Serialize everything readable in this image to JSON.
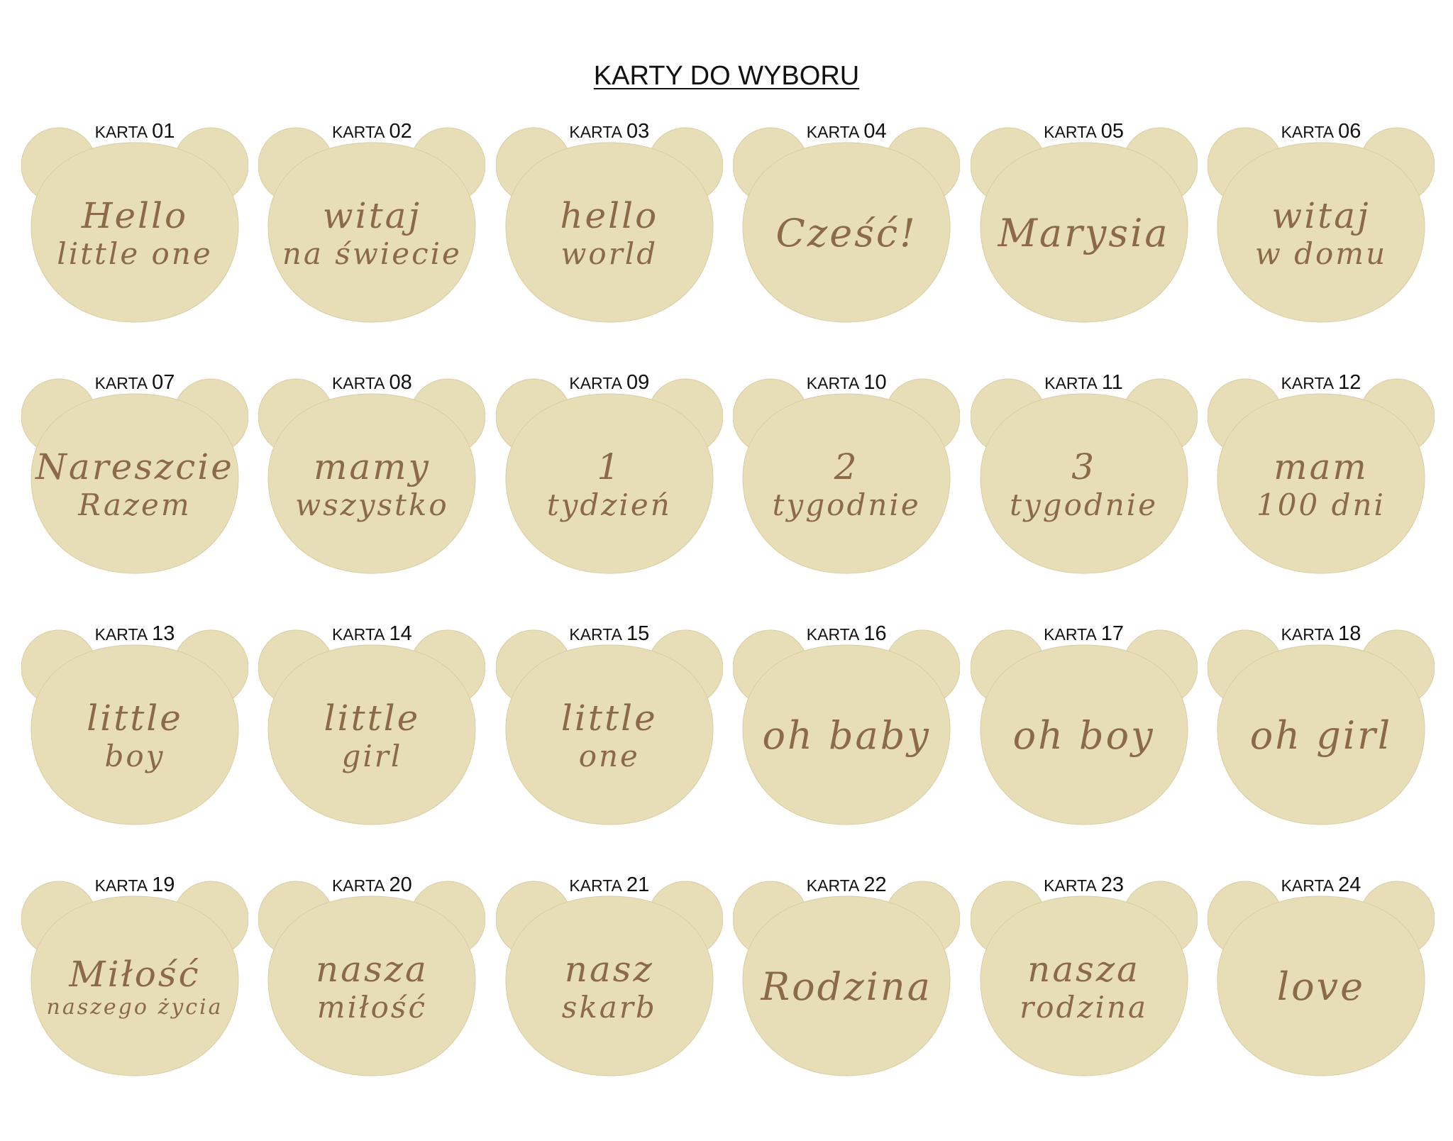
{
  "title": "KARTY DO WYBORU",
  "label_prefix": "KARTA",
  "colors": {
    "wood": "#e7ddb7",
    "wood_edge": "#d9cda2",
    "engraving": "#8b6a48",
    "background": "#ffffff"
  },
  "cards": [
    {
      "number": "01",
      "lines": [
        "Hello",
        "little one"
      ]
    },
    {
      "number": "02",
      "lines": [
        "witaj",
        "na świecie"
      ]
    },
    {
      "number": "03",
      "lines": [
        "hello",
        "world"
      ]
    },
    {
      "number": "04",
      "lines": [
        "Cześć!"
      ]
    },
    {
      "number": "05",
      "lines": [
        "Marysia"
      ]
    },
    {
      "number": "06",
      "lines": [
        "witaj",
        "w domu"
      ]
    },
    {
      "number": "07",
      "lines": [
        "Nareszcie",
        "Razem"
      ]
    },
    {
      "number": "08",
      "lines": [
        "mamy",
        "wszystko"
      ]
    },
    {
      "number": "09",
      "lines": [
        "1",
        "tydzień"
      ]
    },
    {
      "number": "10",
      "lines": [
        "2",
        "tygodnie"
      ]
    },
    {
      "number": "11",
      "lines": [
        "3",
        "tygodnie"
      ]
    },
    {
      "number": "12",
      "lines": [
        "mam",
        "100 dni"
      ]
    },
    {
      "number": "13",
      "lines": [
        "little",
        "boy"
      ]
    },
    {
      "number": "14",
      "lines": [
        "little",
        "girl"
      ]
    },
    {
      "number": "15",
      "lines": [
        "little",
        "one"
      ]
    },
    {
      "number": "16",
      "lines": [
        "oh baby"
      ]
    },
    {
      "number": "17",
      "lines": [
        "oh boy"
      ]
    },
    {
      "number": "18",
      "lines": [
        "oh girl"
      ]
    },
    {
      "number": "19",
      "lines": [
        "Miłość",
        "naszego życia"
      ]
    },
    {
      "number": "20",
      "lines": [
        "nasza",
        "miłość"
      ]
    },
    {
      "number": "21",
      "lines": [
        "nasz",
        "skarb"
      ]
    },
    {
      "number": "22",
      "lines": [
        "Rodzina"
      ]
    },
    {
      "number": "23",
      "lines": [
        "nasza",
        "rodzina"
      ]
    },
    {
      "number": "24",
      "lines": [
        "love"
      ]
    }
  ]
}
